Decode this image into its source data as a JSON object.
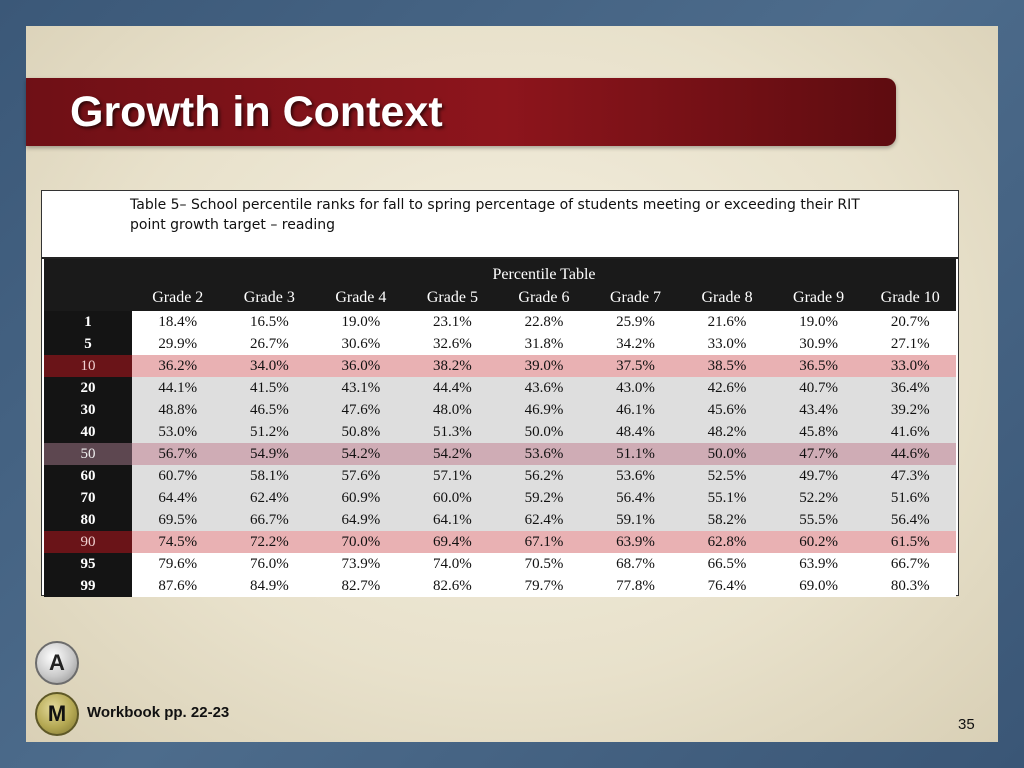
{
  "title": "Growth in Context",
  "caption": "Table 5– School percentile ranks for fall to spring percentage of students meeting or exceeding their RIT point growth target – reading",
  "table": {
    "group_header": "Percentile Table",
    "columns": [
      "Grade 2",
      "Grade 3",
      "Grade 4",
      "Grade 5",
      "Grade 6",
      "Grade 7",
      "Grade 8",
      "Grade 9",
      "Grade 10"
    ],
    "rows": [
      {
        "label": "1",
        "values": [
          "18.4%",
          "16.5%",
          "19.0%",
          "23.1%",
          "22.8%",
          "25.9%",
          "21.6%",
          "19.0%",
          "20.7%"
        ]
      },
      {
        "label": "5",
        "values": [
          "29.9%",
          "26.7%",
          "30.6%",
          "32.6%",
          "31.8%",
          "34.2%",
          "33.0%",
          "30.9%",
          "27.1%"
        ]
      },
      {
        "label": "10",
        "values": [
          "36.2%",
          "34.0%",
          "36.0%",
          "38.2%",
          "39.0%",
          "37.5%",
          "38.5%",
          "36.5%",
          "33.0%"
        ]
      },
      {
        "label": "20",
        "values": [
          "44.1%",
          "41.5%",
          "43.1%",
          "44.4%",
          "43.6%",
          "43.0%",
          "42.6%",
          "40.7%",
          "36.4%"
        ]
      },
      {
        "label": "30",
        "values": [
          "48.8%",
          "46.5%",
          "47.6%",
          "48.0%",
          "46.9%",
          "46.1%",
          "45.6%",
          "43.4%",
          "39.2%"
        ]
      },
      {
        "label": "40",
        "values": [
          "53.0%",
          "51.2%",
          "50.8%",
          "51.3%",
          "50.0%",
          "48.4%",
          "48.2%",
          "45.8%",
          "41.6%"
        ]
      },
      {
        "label": "50",
        "values": [
          "56.7%",
          "54.9%",
          "54.2%",
          "54.2%",
          "53.6%",
          "51.1%",
          "50.0%",
          "47.7%",
          "44.6%"
        ]
      },
      {
        "label": "60",
        "values": [
          "60.7%",
          "58.1%",
          "57.6%",
          "57.1%",
          "56.2%",
          "53.6%",
          "52.5%",
          "49.7%",
          "47.3%"
        ]
      },
      {
        "label": "70",
        "values": [
          "64.4%",
          "62.4%",
          "60.9%",
          "60.0%",
          "59.2%",
          "56.4%",
          "55.1%",
          "52.2%",
          "51.6%"
        ]
      },
      {
        "label": "80",
        "values": [
          "69.5%",
          "66.7%",
          "64.9%",
          "64.1%",
          "62.4%",
          "59.1%",
          "58.2%",
          "55.5%",
          "56.4%"
        ]
      },
      {
        "label": "90",
        "values": [
          "74.5%",
          "72.2%",
          "70.0%",
          "69.4%",
          "67.1%",
          "63.9%",
          "62.8%",
          "60.2%",
          "61.5%"
        ]
      },
      {
        "label": "95",
        "values": [
          "79.6%",
          "76.0%",
          "73.9%",
          "74.0%",
          "70.5%",
          "68.7%",
          "66.5%",
          "63.9%",
          "66.7%"
        ]
      },
      {
        "label": "99",
        "values": [
          "87.6%",
          "84.9%",
          "82.7%",
          "82.6%",
          "79.7%",
          "77.8%",
          "76.4%",
          "69.0%",
          "80.3%"
        ]
      }
    ]
  },
  "badges": {
    "a": "A",
    "m": "M"
  },
  "workbook": "Workbook pp. 22-23",
  "page_number": "35"
}
